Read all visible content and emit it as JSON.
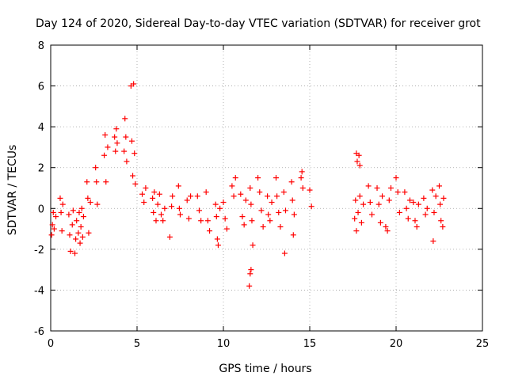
{
  "chart_data": {
    "type": "scatter",
    "title": "Day 124 of 2020, Sidereal Day-to-day VTEC variation (SDTVAR) for receiver grot",
    "xlabel": "GPS time / hours",
    "ylabel": "SDTVAR / TECUs",
    "xlim": [
      0,
      25
    ],
    "ylim": [
      -6,
      8
    ],
    "xticks": [
      "0",
      "5",
      "10",
      "15",
      "20",
      "25"
    ],
    "yticks": [
      "-6",
      "-4",
      "-2",
      "0",
      "2",
      "4",
      "6",
      "8"
    ],
    "grid": true,
    "marker": "+",
    "color": "#ff0000",
    "series": [
      {
        "name": "SDTVAR",
        "points": [
          [
            0.05,
            -1.3
          ],
          [
            0.1,
            -0.8
          ],
          [
            0.15,
            -0.2
          ],
          [
            0.2,
            -1.0
          ],
          [
            0.3,
            -0.4
          ],
          [
            0.55,
            0.5
          ],
          [
            0.6,
            -0.2
          ],
          [
            0.65,
            -1.1
          ],
          [
            0.7,
            0.2
          ],
          [
            1.05,
            -0.3
          ],
          [
            1.1,
            -1.3
          ],
          [
            1.15,
            -2.1
          ],
          [
            1.25,
            -0.8
          ],
          [
            1.3,
            -0.1
          ],
          [
            1.4,
            -2.2
          ],
          [
            1.45,
            -1.5
          ],
          [
            1.5,
            -0.6
          ],
          [
            1.6,
            -1.2
          ],
          [
            1.65,
            -0.2
          ],
          [
            1.7,
            -1.7
          ],
          [
            1.75,
            -0.9
          ],
          [
            1.8,
            0.0
          ],
          [
            1.85,
            -1.4
          ],
          [
            1.9,
            -0.4
          ],
          [
            2.1,
            1.3
          ],
          [
            2.15,
            0.5
          ],
          [
            2.2,
            -1.2
          ],
          [
            2.3,
            0.3
          ],
          [
            2.6,
            2.0
          ],
          [
            2.65,
            1.3
          ],
          [
            2.7,
            0.2
          ],
          [
            3.1,
            2.6
          ],
          [
            3.15,
            3.6
          ],
          [
            3.2,
            1.3
          ],
          [
            3.3,
            3.0
          ],
          [
            3.7,
            3.5
          ],
          [
            3.75,
            2.8
          ],
          [
            3.8,
            3.9
          ],
          [
            3.85,
            3.2
          ],
          [
            4.25,
            2.8
          ],
          [
            4.3,
            4.4
          ],
          [
            4.35,
            3.5
          ],
          [
            4.4,
            2.3
          ],
          [
            4.65,
            6.0
          ],
          [
            4.7,
            3.3
          ],
          [
            4.75,
            1.6
          ],
          [
            4.8,
            6.1
          ],
          [
            4.85,
            2.7
          ],
          [
            4.9,
            1.2
          ],
          [
            5.3,
            0.7
          ],
          [
            5.4,
            0.3
          ],
          [
            5.5,
            1.0
          ],
          [
            5.9,
            0.5
          ],
          [
            5.95,
            -0.2
          ],
          [
            6.0,
            0.8
          ],
          [
            6.1,
            -0.6
          ],
          [
            6.2,
            0.2
          ],
          [
            6.3,
            0.7
          ],
          [
            6.4,
            -0.3
          ],
          [
            6.5,
            -0.6
          ],
          [
            6.6,
            0.0
          ],
          [
            6.9,
            -1.4
          ],
          [
            7.0,
            0.1
          ],
          [
            7.05,
            0.6
          ],
          [
            7.4,
            1.1
          ],
          [
            7.45,
            0.0
          ],
          [
            7.5,
            -0.3
          ],
          [
            7.9,
            0.4
          ],
          [
            8.0,
            -0.5
          ],
          [
            8.1,
            0.6
          ],
          [
            8.5,
            0.6
          ],
          [
            8.6,
            -0.1
          ],
          [
            8.7,
            -0.6
          ],
          [
            9.0,
            0.8
          ],
          [
            9.1,
            -0.6
          ],
          [
            9.2,
            -1.1
          ],
          [
            9.55,
            0.2
          ],
          [
            9.6,
            -0.4
          ],
          [
            9.65,
            -1.5
          ],
          [
            9.7,
            -1.8
          ],
          [
            9.8,
            0.0
          ],
          [
            10.0,
            0.3
          ],
          [
            10.1,
            -0.5
          ],
          [
            10.2,
            -1.0
          ],
          [
            10.5,
            1.1
          ],
          [
            10.6,
            0.6
          ],
          [
            10.7,
            1.5
          ],
          [
            11.0,
            0.7
          ],
          [
            11.1,
            -0.4
          ],
          [
            11.2,
            -0.8
          ],
          [
            11.3,
            0.4
          ],
          [
            11.55,
            1.0
          ],
          [
            11.6,
            0.2
          ],
          [
            11.65,
            -0.6
          ],
          [
            11.7,
            -1.8
          ],
          [
            11.5,
            -3.8
          ],
          [
            11.55,
            -3.2
          ],
          [
            11.6,
            -3.0
          ],
          [
            12.0,
            1.5
          ],
          [
            12.1,
            0.8
          ],
          [
            12.2,
            -0.1
          ],
          [
            12.3,
            -0.9
          ],
          [
            12.55,
            0.6
          ],
          [
            12.6,
            -0.3
          ],
          [
            12.7,
            -0.6
          ],
          [
            12.8,
            0.3
          ],
          [
            13.05,
            1.5
          ],
          [
            13.1,
            0.6
          ],
          [
            13.2,
            -0.2
          ],
          [
            13.3,
            -0.9
          ],
          [
            13.5,
            0.8
          ],
          [
            13.6,
            -0.1
          ],
          [
            13.55,
            -2.2
          ],
          [
            13.95,
            1.3
          ],
          [
            14.0,
            0.4
          ],
          [
            14.1,
            -0.3
          ],
          [
            14.05,
            -1.3
          ],
          [
            14.5,
            1.5
          ],
          [
            14.55,
            1.8
          ],
          [
            14.6,
            1.0
          ],
          [
            15.0,
            0.9
          ],
          [
            15.1,
            0.1
          ],
          [
            17.7,
            2.7
          ],
          [
            17.75,
            2.3
          ],
          [
            17.85,
            2.6
          ],
          [
            17.9,
            2.1
          ],
          [
            17.6,
            -0.5
          ],
          [
            17.65,
            0.4
          ],
          [
            17.7,
            -1.1
          ],
          [
            17.8,
            -0.2
          ],
          [
            17.9,
            0.6
          ],
          [
            18.0,
            -0.7
          ],
          [
            18.1,
            0.2
          ],
          [
            18.4,
            1.1
          ],
          [
            18.5,
            0.3
          ],
          [
            18.6,
            -0.3
          ],
          [
            18.9,
            1.0
          ],
          [
            19.0,
            0.2
          ],
          [
            19.1,
            -0.7
          ],
          [
            19.2,
            0.6
          ],
          [
            19.4,
            -0.9
          ],
          [
            19.5,
            -1.1
          ],
          [
            19.6,
            0.4
          ],
          [
            19.7,
            1.0
          ],
          [
            20.0,
            1.5
          ],
          [
            20.1,
            0.8
          ],
          [
            20.2,
            -0.2
          ],
          [
            20.5,
            0.8
          ],
          [
            20.6,
            0.0
          ],
          [
            20.7,
            -0.5
          ],
          [
            20.8,
            0.4
          ],
          [
            21.0,
            0.3
          ],
          [
            21.1,
            -0.6
          ],
          [
            21.2,
            -0.9
          ],
          [
            21.3,
            0.2
          ],
          [
            21.6,
            0.5
          ],
          [
            21.7,
            -0.3
          ],
          [
            21.8,
            0.0
          ],
          [
            22.1,
            0.9
          ],
          [
            22.15,
            -1.6
          ],
          [
            22.2,
            -0.2
          ],
          [
            22.3,
            0.6
          ],
          [
            22.5,
            1.1
          ],
          [
            22.55,
            0.2
          ],
          [
            22.6,
            -0.6
          ],
          [
            22.7,
            -0.9
          ],
          [
            22.75,
            0.5
          ]
        ]
      }
    ]
  }
}
